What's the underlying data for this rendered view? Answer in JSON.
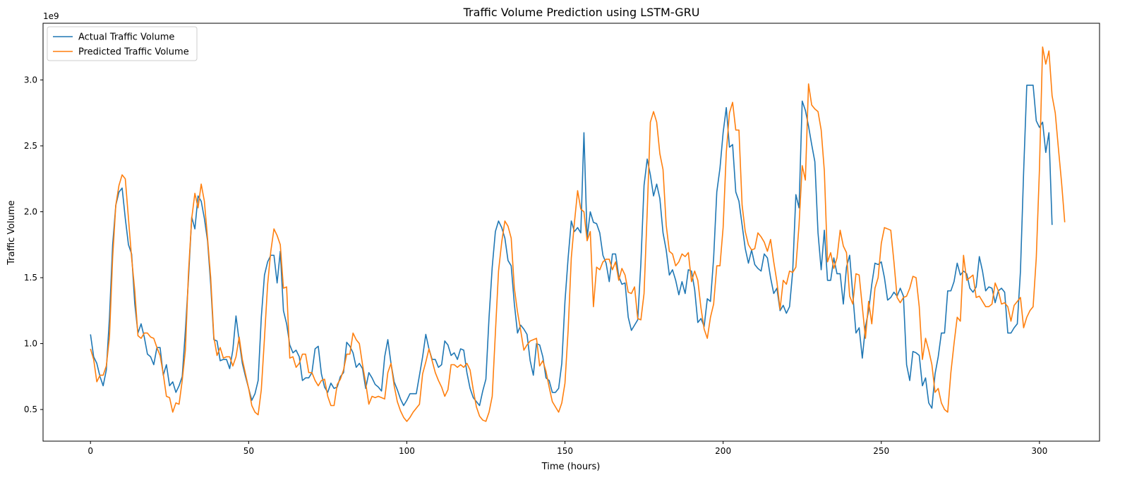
{
  "chart_data": {
    "type": "line",
    "title": "Traffic Volume Prediction using LSTM-GRU",
    "xlabel": "Time (hours)",
    "ylabel": "Traffic Volume",
    "y_offset_label": "1e9",
    "xlim": [
      -15,
      319
    ],
    "ylim": [
      0.26,
      3.43
    ],
    "x_ticks": [
      0,
      50,
      100,
      150,
      200,
      250,
      300
    ],
    "x_tick_labels": [
      "0",
      "50",
      "100",
      "150",
      "200",
      "250",
      "300"
    ],
    "y_ticks": [
      0.5,
      1.0,
      1.5,
      2.0,
      2.5,
      3.0
    ],
    "y_tick_labels": [
      "0.5",
      "1.0",
      "1.5",
      "2.0",
      "2.5",
      "3.0"
    ],
    "grid": false,
    "legend_position": "top-left",
    "x_start": 0,
    "x_step": 1,
    "series": [
      {
        "name": "Actual Traffic Volume",
        "color": "#1f77b4",
        "values": [
          1.07,
          0.9,
          0.85,
          0.75,
          0.68,
          0.8,
          1.2,
          1.75,
          2.05,
          2.15,
          2.18,
          1.95,
          1.75,
          1.68,
          1.3,
          1.08,
          1.15,
          1.05,
          0.92,
          0.9,
          0.84,
          0.97,
          0.97,
          0.76,
          0.84,
          0.68,
          0.71,
          0.63,
          0.68,
          0.75,
          1.1,
          1.5,
          1.96,
          1.87,
          2.12,
          2.08,
          1.95,
          1.78,
          1.45,
          1.03,
          1.02,
          0.87,
          0.88,
          0.88,
          0.81,
          0.95,
          1.21,
          1.02,
          0.85,
          0.75,
          0.66,
          0.57,
          0.62,
          0.72,
          1.2,
          1.52,
          1.62,
          1.67,
          1.67,
          1.46,
          1.7,
          1.25,
          1.15,
          0.99,
          0.93,
          0.95,
          0.9,
          0.72,
          0.74,
          0.74,
          0.78,
          0.96,
          0.98,
          0.77,
          0.67,
          0.63,
          0.7,
          0.66,
          0.67,
          0.75,
          0.78,
          1.01,
          0.98,
          0.93,
          0.82,
          0.85,
          0.81,
          0.66,
          0.78,
          0.74,
          0.69,
          0.67,
          0.64,
          0.9,
          1.03,
          0.85,
          0.71,
          0.65,
          0.58,
          0.53,
          0.57,
          0.62,
          0.62,
          0.62,
          0.76,
          0.9,
          1.07,
          0.96,
          0.88,
          0.88,
          0.82,
          0.84,
          1.02,
          0.99,
          0.91,
          0.93,
          0.88,
          0.96,
          0.95,
          0.78,
          0.66,
          0.59,
          0.56,
          0.53,
          0.64,
          0.73,
          1.2,
          1.58,
          1.85,
          1.93,
          1.88,
          1.8,
          1.63,
          1.59,
          1.3,
          1.08,
          1.14,
          1.11,
          1.07,
          0.87,
          0.76,
          1.0,
          0.99,
          0.9,
          0.74,
          0.72,
          0.63,
          0.63,
          0.66,
          0.85,
          1.32,
          1.65,
          1.93,
          1.85,
          1.88,
          1.84,
          2.6,
          1.8,
          2.0,
          1.92,
          1.91,
          1.84,
          1.67,
          1.61,
          1.47,
          1.68,
          1.68,
          1.51,
          1.45,
          1.46,
          1.2,
          1.1,
          1.14,
          1.18,
          1.61,
          2.2,
          2.4,
          2.28,
          2.12,
          2.21,
          2.1,
          1.84,
          1.71,
          1.52,
          1.56,
          1.48,
          1.37,
          1.47,
          1.38,
          1.56,
          1.55,
          1.41,
          1.16,
          1.19,
          1.13,
          1.34,
          1.32,
          1.65,
          2.15,
          2.33,
          2.6,
          2.79,
          2.49,
          2.51,
          2.15,
          2.08,
          1.9,
          1.72,
          1.61,
          1.71,
          1.6,
          1.57,
          1.55,
          1.68,
          1.65,
          1.5,
          1.38,
          1.42,
          1.25,
          1.29,
          1.23,
          1.28,
          1.55,
          2.13,
          2.03,
          2.84,
          2.77,
          2.65,
          2.51,
          2.38,
          1.84,
          1.56,
          1.86,
          1.48,
          1.48,
          1.65,
          1.53,
          1.53,
          1.3,
          1.58,
          1.67,
          1.37,
          1.08,
          1.12,
          0.89,
          1.13,
          1.25,
          1.45,
          1.61,
          1.6,
          1.62,
          1.5,
          1.33,
          1.35,
          1.39,
          1.36,
          1.42,
          1.36,
          0.84,
          0.72,
          0.94,
          0.93,
          0.91,
          0.68,
          0.74,
          0.55,
          0.51,
          0.77,
          0.9,
          1.08,
          1.08,
          1.4,
          1.4,
          1.47,
          1.61,
          1.52,
          1.55,
          1.53,
          1.42,
          1.39,
          1.43,
          1.66,
          1.55,
          1.4,
          1.43,
          1.42,
          1.31,
          1.4,
          1.42,
          1.39,
          1.08,
          1.08,
          1.12,
          1.15,
          1.55,
          2.3,
          2.96,
          2.96,
          2.96,
          2.69,
          2.64,
          2.68,
          2.45,
          2.6,
          1.9
        ]
      },
      {
        "name": "Predicted Traffic Volume",
        "color": "#ff7f0e",
        "values": [
          0.96,
          0.88,
          0.71,
          0.76,
          0.76,
          0.83,
          1.05,
          1.65,
          2.05,
          2.2,
          2.28,
          2.25,
          1.95,
          1.65,
          1.4,
          1.06,
          1.04,
          1.08,
          1.08,
          1.05,
          1.04,
          0.97,
          0.91,
          0.77,
          0.6,
          0.59,
          0.48,
          0.55,
          0.54,
          0.72,
          0.95,
          1.55,
          1.95,
          2.14,
          2.03,
          2.21,
          2.08,
          1.8,
          1.5,
          1.05,
          0.91,
          0.97,
          0.89,
          0.9,
          0.9,
          0.83,
          0.9,
          1.05,
          0.88,
          0.77,
          0.66,
          0.53,
          0.48,
          0.46,
          0.65,
          1.04,
          1.45,
          1.7,
          1.87,
          1.82,
          1.75,
          1.42,
          1.43,
          0.89,
          0.9,
          0.82,
          0.85,
          0.92,
          0.92,
          0.78,
          0.78,
          0.72,
          0.68,
          0.72,
          0.73,
          0.6,
          0.53,
          0.53,
          0.69,
          0.73,
          0.8,
          0.92,
          0.92,
          1.08,
          1.03,
          1.0,
          0.84,
          0.7,
          0.54,
          0.6,
          0.59,
          0.6,
          0.59,
          0.58,
          0.78,
          0.85,
          0.68,
          0.56,
          0.49,
          0.44,
          0.41,
          0.44,
          0.48,
          0.51,
          0.54,
          0.77,
          0.86,
          0.96,
          0.87,
          0.78,
          0.72,
          0.67,
          0.6,
          0.65,
          0.84,
          0.84,
          0.82,
          0.84,
          0.82,
          0.85,
          0.8,
          0.65,
          0.52,
          0.45,
          0.42,
          0.41,
          0.48,
          0.6,
          1.08,
          1.55,
          1.77,
          1.93,
          1.89,
          1.8,
          1.42,
          1.24,
          1.1,
          0.95,
          0.99,
          1.02,
          1.03,
          1.04,
          0.83,
          0.87,
          0.79,
          0.67,
          0.56,
          0.52,
          0.48,
          0.55,
          0.7,
          1.1,
          1.65,
          1.92,
          2.16,
          2.02,
          2.0,
          1.78,
          1.85,
          1.28,
          1.58,
          1.56,
          1.62,
          1.64,
          1.64,
          1.56,
          1.62,
          1.48,
          1.57,
          1.52,
          1.39,
          1.38,
          1.43,
          1.19,
          1.18,
          1.38,
          2.0,
          2.68,
          2.76,
          2.68,
          2.44,
          2.32,
          1.9,
          1.7,
          1.68,
          1.59,
          1.62,
          1.68,
          1.66,
          1.69,
          1.47,
          1.55,
          1.48,
          1.27,
          1.11,
          1.04,
          1.2,
          1.3,
          1.59,
          1.59,
          1.88,
          2.45,
          2.75,
          2.83,
          2.62,
          2.62,
          2.05,
          1.85,
          1.75,
          1.71,
          1.72,
          1.84,
          1.81,
          1.77,
          1.7,
          1.79,
          1.62,
          1.47,
          1.26,
          1.48,
          1.45,
          1.55,
          1.54,
          1.58,
          1.9,
          2.35,
          2.24,
          2.97,
          2.81,
          2.78,
          2.76,
          2.62,
          2.31,
          1.62,
          1.69,
          1.57,
          1.65,
          1.86,
          1.74,
          1.69,
          1.36,
          1.3,
          1.53,
          1.52,
          1.28,
          1.04,
          1.32,
          1.15,
          1.42,
          1.5,
          1.76,
          1.88,
          1.87,
          1.86,
          1.62,
          1.35,
          1.31,
          1.35,
          1.36,
          1.42,
          1.51,
          1.5,
          1.28,
          0.88,
          1.04,
          0.95,
          0.84,
          0.63,
          0.66,
          0.55,
          0.5,
          0.48,
          0.78,
          1.0,
          1.2,
          1.17,
          1.67,
          1.48,
          1.5,
          1.52,
          1.35,
          1.36,
          1.32,
          1.28,
          1.28,
          1.3,
          1.46,
          1.4,
          1.3,
          1.31,
          1.28,
          1.17,
          1.29,
          1.32,
          1.35,
          1.12,
          1.2,
          1.25,
          1.28,
          1.65,
          2.32,
          3.25,
          3.12,
          3.22,
          2.88,
          2.75,
          2.48,
          2.22,
          1.92
        ]
      }
    ]
  }
}
